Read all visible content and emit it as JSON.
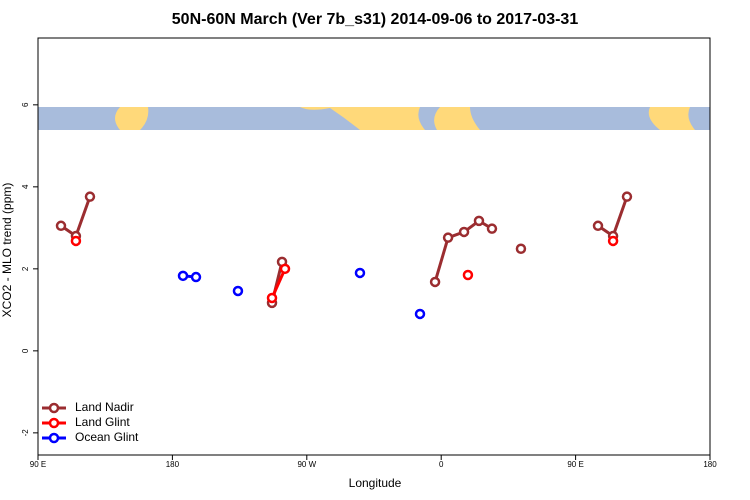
{
  "chart_data": {
    "type": "line",
    "title": "50N-60N March (Ver 7b_s31)   2014-09-06 to 2017-03-31",
    "x_label": "Longitude",
    "y_label": "XCO2 - MLO trend (ppm)",
    "xlim": [
      90,
      540
    ],
    "ylim": [
      -2.54,
      7.63
    ],
    "xticks": [
      {
        "value": 90,
        "label": "90 E"
      },
      {
        "value": 180,
        "label": "180"
      },
      {
        "value": 270,
        "label": "90 W"
      },
      {
        "value": 360,
        "label": "0"
      },
      {
        "value": 450,
        "label": "90 E"
      },
      {
        "value": 540,
        "label": "180"
      }
    ],
    "yticks": [
      -2,
      0,
      2,
      4,
      6
    ],
    "legend": "bottom-left",
    "series": [
      {
        "name": "Land Nadir",
        "color": "#9b2d30",
        "x": [
          105.4,
          115.4,
          124.8,
          null,
          246.7,
          253.4,
          null,
          355.9,
          364.6,
          375.3,
          385.3,
          394.0,
          null,
          413.4,
          null,
          465.0,
          475.1,
          484.4
        ],
        "values": [
          3.05,
          2.8,
          3.76,
          null,
          1.17,
          2.17,
          null,
          1.68,
          2.76,
          2.9,
          3.17,
          2.98,
          null,
          2.49,
          null,
          3.05,
          2.8,
          3.76
        ]
      },
      {
        "name": "Land Glint",
        "color": "#ff0000",
        "x": [
          115.4,
          null,
          246.7,
          255.4,
          null,
          377.9,
          null,
          475.1
        ],
        "values": [
          2.68,
          null,
          1.29,
          2.0,
          null,
          1.85,
          null,
          2.68
        ]
      },
      {
        "name": "Ocean Glint",
        "color": "#0000ff",
        "x": [
          187.1,
          195.8,
          null,
          223.9,
          null,
          305.6,
          null,
          345.8
        ],
        "values": [
          1.83,
          1.8,
          null,
          1.46,
          null,
          1.9,
          null,
          0.9
        ]
      }
    ]
  }
}
